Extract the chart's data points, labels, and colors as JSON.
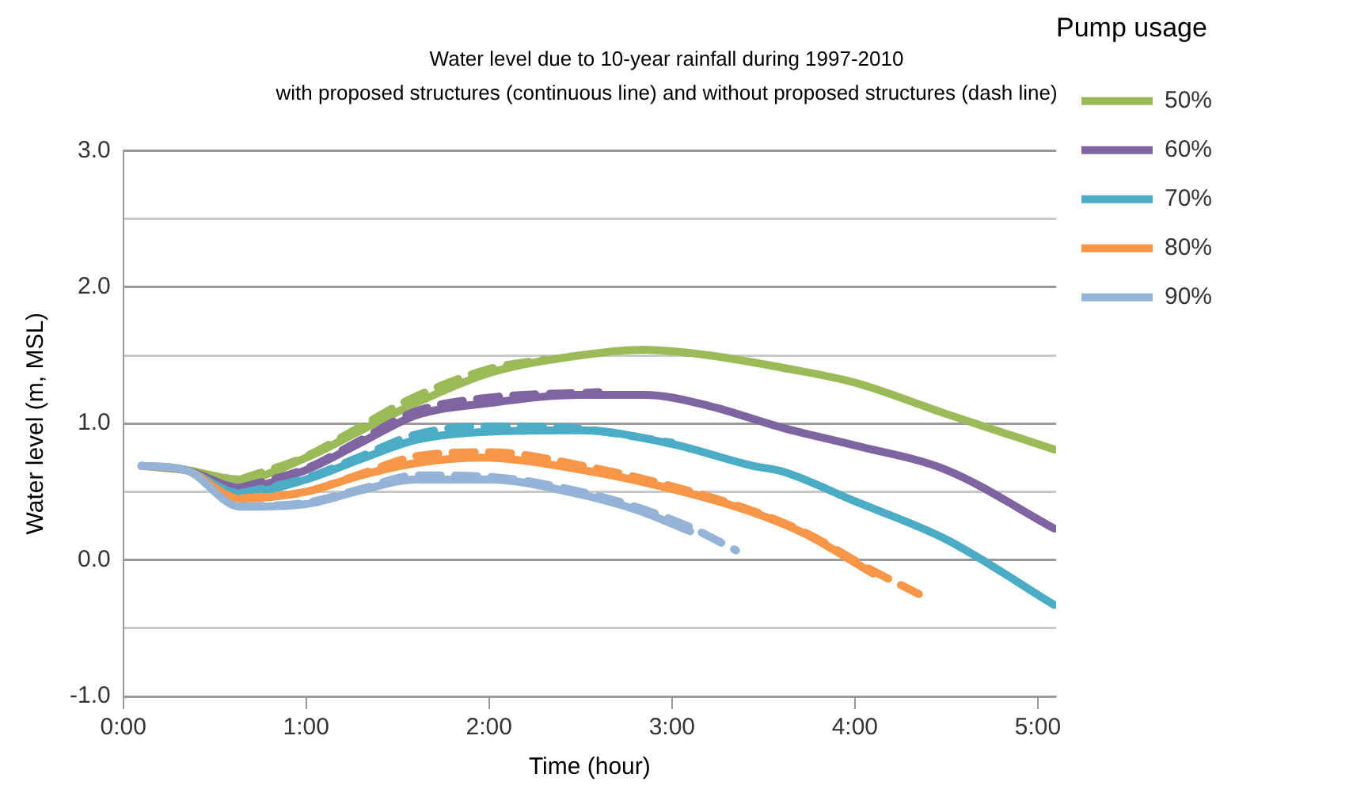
{
  "chart_data": {
    "type": "line",
    "title": "Water level due to 10-year rainfall during 1997-2010",
    "subtitle": "with proposed structures (continuous line) and without proposed structures (dash line)",
    "xlabel": "Time (hour)",
    "ylabel": "Water level (m, MSL)",
    "legend_title": "Pump usage",
    "legend": "right",
    "grid": "y",
    "marker": "none",
    "xlim": [
      0,
      5.1
    ],
    "xticks": [
      {
        "value": 0,
        "label": "0:00"
      },
      {
        "value": 1,
        "label": "1:00"
      },
      {
        "value": 2,
        "label": "2:00"
      },
      {
        "value": 3,
        "label": "3:00"
      },
      {
        "value": 4,
        "label": "4:00"
      },
      {
        "value": 5,
        "label": "5:00"
      }
    ],
    "ylim": [
      -1,
      3
    ],
    "yticks": [
      {
        "value": -1,
        "label": "-1.0"
      },
      {
        "value": -0.5,
        "label": null
      },
      {
        "value": 0,
        "label": "0.0"
      },
      {
        "value": 0.5,
        "label": null
      },
      {
        "value": 1,
        "label": "1.0"
      },
      {
        "value": 1.5,
        "label": null
      },
      {
        "value": 2,
        "label": "2.0"
      },
      {
        "value": 2.5,
        "label": null
      },
      {
        "value": 3,
        "label": "3.0"
      }
    ],
    "series": [
      {
        "name": "50%",
        "color": "#9bbb59",
        "line_style": "solid",
        "x": [
          0.1,
          0.34,
          0.64,
          1.0,
          1.3,
          1.6,
          2.0,
          2.5,
          2.85,
          3.2,
          3.6,
          4.0,
          4.5,
          5.09
        ],
        "values": [
          0.69,
          0.66,
          0.59,
          0.75,
          0.95,
          1.15,
          1.37,
          1.5,
          1.54,
          1.5,
          1.41,
          1.3,
          1.07,
          0.81
        ]
      },
      {
        "name": "60%",
        "color": "#8064a2",
        "line_style": "solid",
        "x": [
          0.1,
          0.34,
          0.64,
          1.0,
          1.3,
          1.6,
          2.0,
          2.5,
          2.85,
          3.2,
          3.6,
          4.0,
          4.5,
          5.09
        ],
        "values": [
          0.69,
          0.66,
          0.53,
          0.66,
          0.86,
          1.06,
          1.15,
          1.21,
          1.21,
          1.13,
          0.97,
          0.84,
          0.66,
          0.23
        ]
      },
      {
        "name": "70%",
        "color": "#4bacc6",
        "line_style": "solid",
        "x": [
          0.1,
          0.34,
          0.64,
          1.0,
          1.3,
          1.6,
          2.0,
          2.5,
          3.0,
          3.44,
          3.6,
          4.0,
          4.5,
          5.09
        ],
        "values": [
          0.69,
          0.66,
          0.49,
          0.59,
          0.74,
          0.88,
          0.94,
          0.95,
          0.85,
          0.69,
          0.65,
          0.43,
          0.15,
          -0.33
        ]
      },
      {
        "name": "80%",
        "color": "#f79646",
        "line_style": "solid",
        "x": [
          0.1,
          0.34,
          0.64,
          1.0,
          1.3,
          1.6,
          1.95,
          2.55,
          3.0,
          3.44,
          3.73,
          4.1
        ],
        "values": [
          0.69,
          0.66,
          0.45,
          0.5,
          0.62,
          0.71,
          0.75,
          0.65,
          0.52,
          0.35,
          0.19,
          -0.1
        ]
      },
      {
        "name": "90%",
        "color": "#95b3d7",
        "line_style": "solid",
        "x": [
          0.1,
          0.34,
          0.64,
          1.0,
          1.3,
          1.6,
          2.0,
          2.5,
          2.8,
          3.1
        ],
        "values": [
          0.69,
          0.66,
          0.39,
          0.41,
          0.51,
          0.59,
          0.59,
          0.48,
          0.37,
          0.21
        ]
      },
      {
        "color": "#9bbb59",
        "line_style": "dashed",
        "x": [
          0.64,
          1.0,
          1.3,
          1.57,
          2.0,
          2.3
        ],
        "values": [
          0.59,
          0.76,
          0.98,
          1.18,
          1.4,
          1.47
        ]
      },
      {
        "color": "#8064a2",
        "line_style": "dashed",
        "x": [
          0.64,
          1.0,
          1.3,
          1.6,
          2.0,
          2.6
        ],
        "values": [
          0.53,
          0.67,
          0.88,
          1.09,
          1.19,
          1.23
        ]
      },
      {
        "color": "#4bacc6",
        "line_style": "dashed",
        "x": [
          0.64,
          1.0,
          1.3,
          1.6,
          2.0,
          2.5,
          3.0
        ],
        "values": [
          0.49,
          0.6,
          0.76,
          0.92,
          0.98,
          0.96,
          0.86
        ]
      },
      {
        "color": "#f79646",
        "line_style": "dashed",
        "x": [
          0.64,
          1.0,
          1.3,
          1.6,
          2.0,
          2.55,
          3.0,
          3.44,
          3.73,
          4.1,
          4.35
        ],
        "values": [
          0.45,
          0.5,
          0.63,
          0.76,
          0.79,
          0.68,
          0.54,
          0.36,
          0.2,
          -0.08,
          -0.25
        ]
      },
      {
        "color": "#95b3d7",
        "line_style": "dashed",
        "x": [
          0.64,
          1.0,
          1.3,
          1.6,
          2.0,
          2.5,
          2.8,
          3.1,
          3.35
        ],
        "values": [
          0.39,
          0.42,
          0.52,
          0.62,
          0.61,
          0.5,
          0.39,
          0.24,
          0.07
        ]
      }
    ]
  }
}
